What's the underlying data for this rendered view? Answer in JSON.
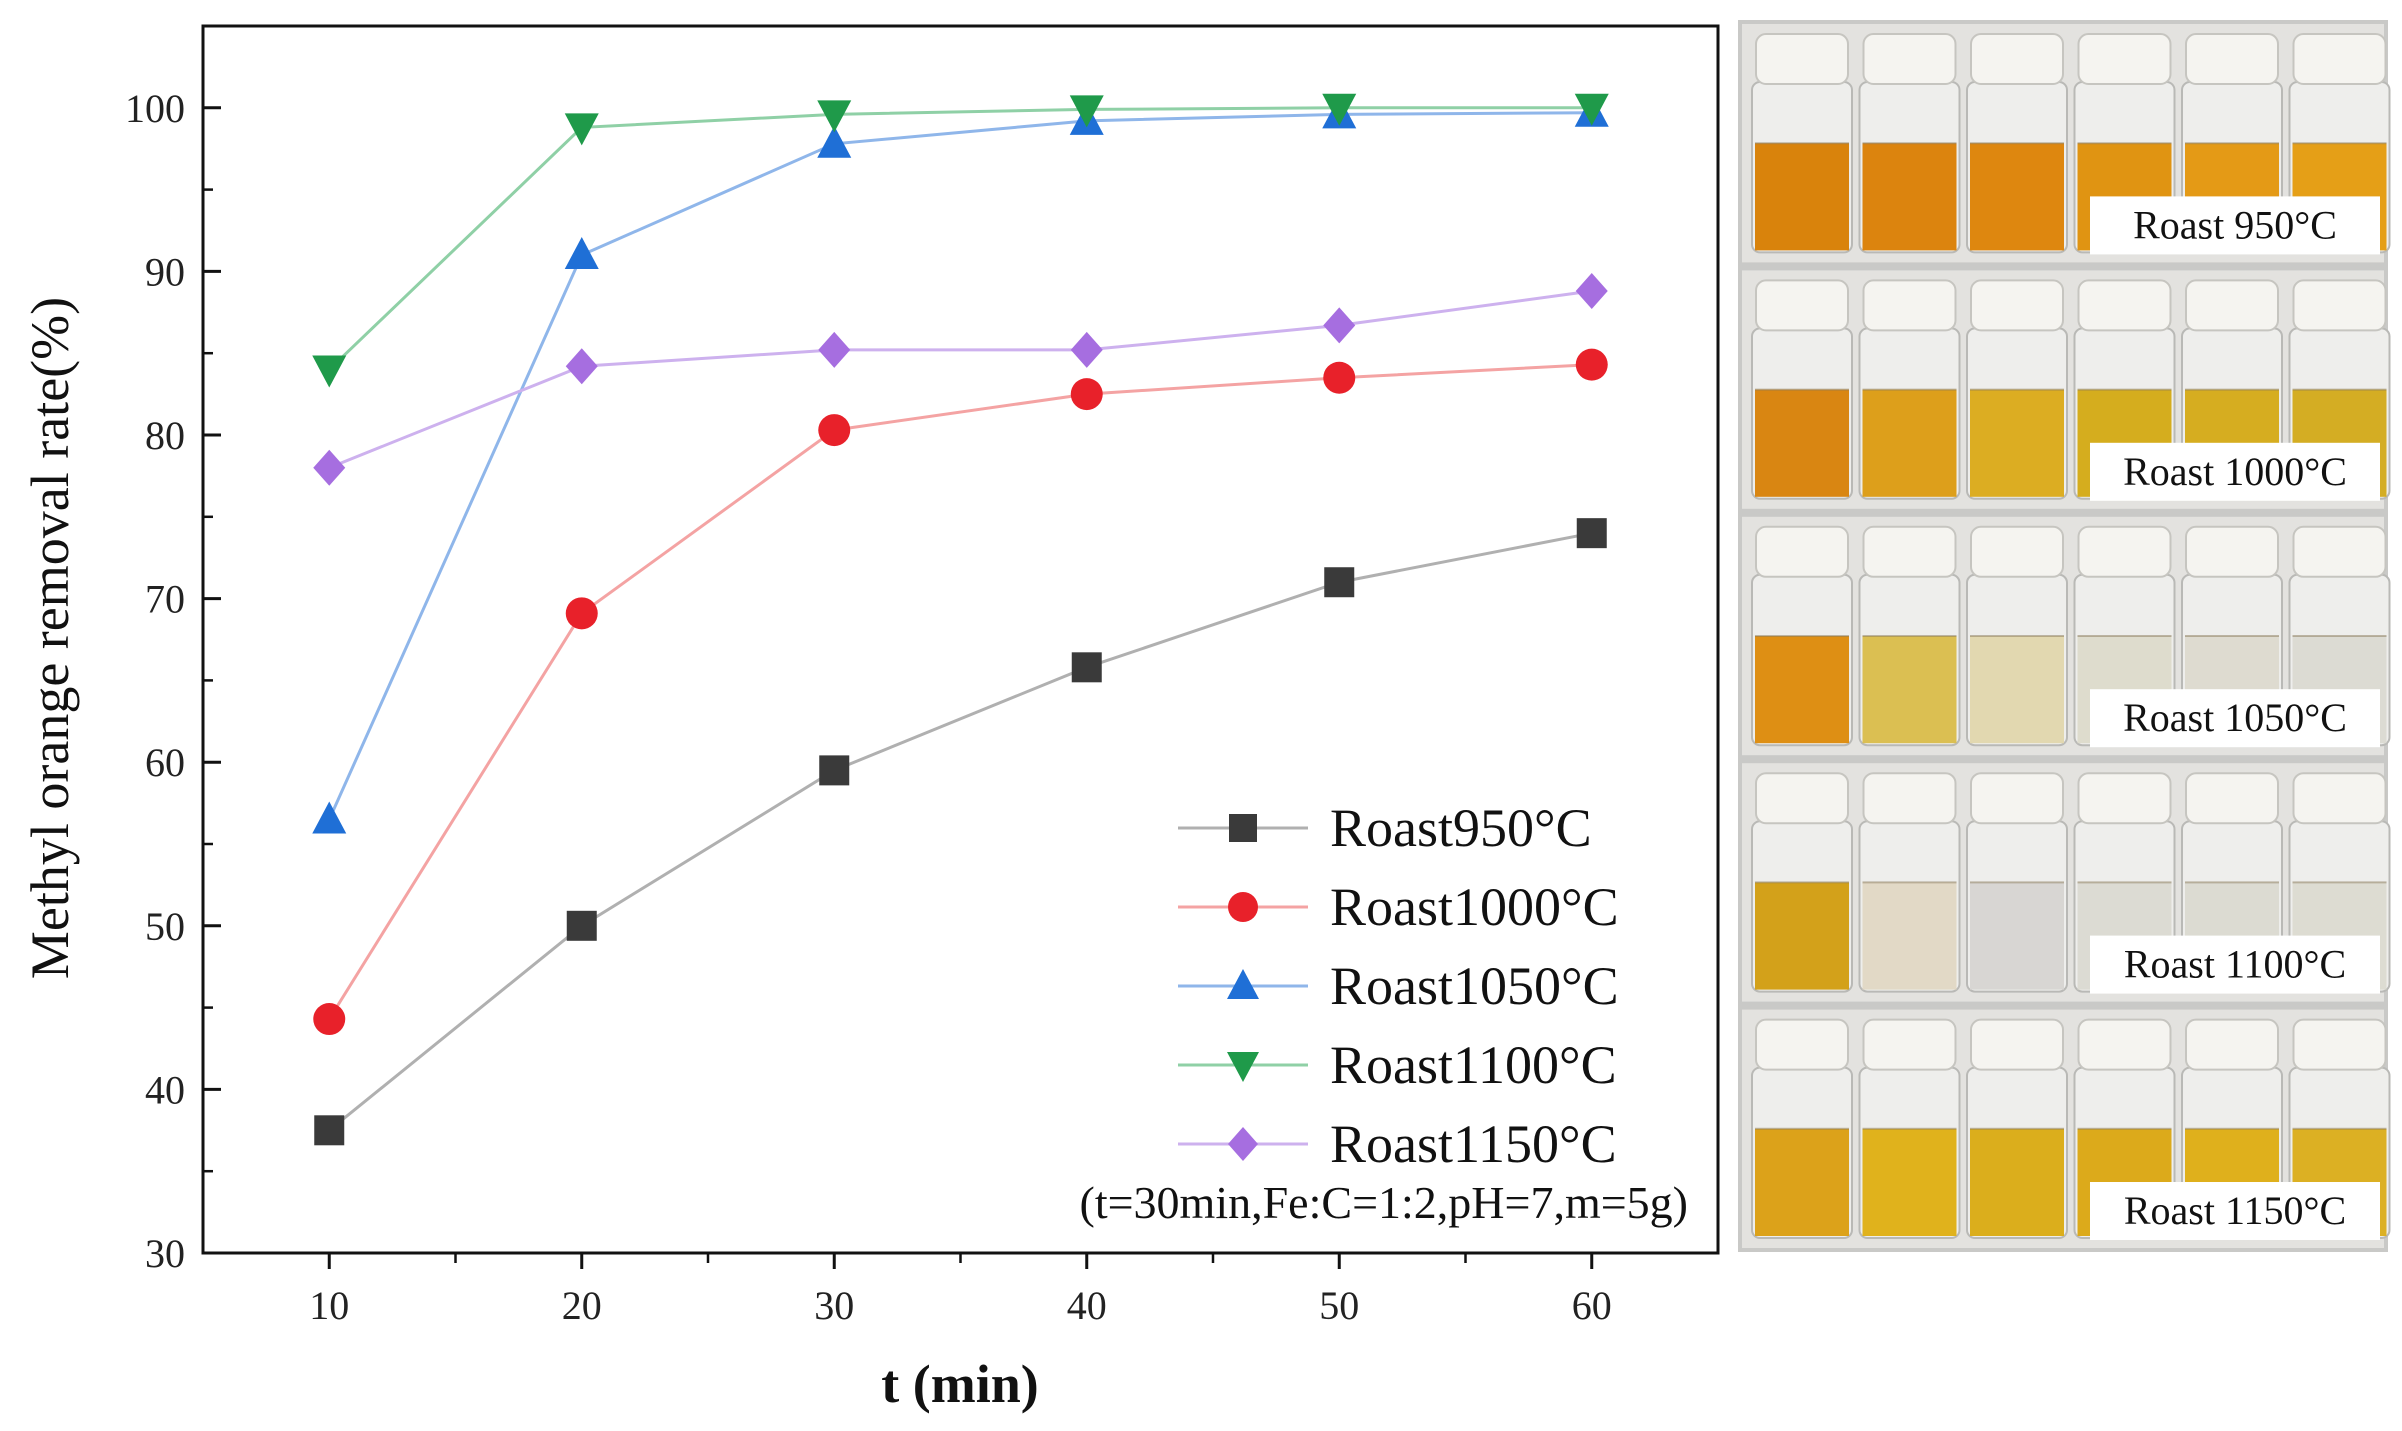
{
  "chart_data": {
    "type": "line",
    "title": "",
    "xlabel": "t (min)",
    "ylabel": "Methyl orange removal rate(%)",
    "x": [
      10,
      20,
      30,
      40,
      50,
      60
    ],
    "xlim": [
      5,
      65
    ],
    "ylim": [
      30,
      105
    ],
    "xticks": [
      10,
      20,
      30,
      40,
      50,
      60
    ],
    "yticks": [
      30,
      40,
      50,
      60,
      70,
      80,
      90,
      100
    ],
    "grid": false,
    "legend_position": "bottom-right",
    "series": [
      {
        "name": "Roast950°C",
        "marker": "square",
        "color": "#3a3a3a",
        "line_color": "#b0b0b0",
        "values": [
          37.5,
          50.0,
          59.5,
          65.8,
          71.0,
          74.0
        ]
      },
      {
        "name": "Roast1000°C",
        "marker": "circle",
        "color": "#e8212a",
        "line_color": "#f4a3a3",
        "values": [
          44.3,
          69.1,
          80.3,
          82.5,
          83.5,
          84.3
        ]
      },
      {
        "name": "Roast1050°C",
        "marker": "triangle-up",
        "color": "#1f6fd6",
        "line_color": "#8fb6ea",
        "values": [
          56.5,
          91.0,
          97.8,
          99.2,
          99.6,
          99.7
        ]
      },
      {
        "name": "Roast1100°C",
        "marker": "triangle-down",
        "color": "#1f9a4a",
        "line_color": "#8fd0a6",
        "values": [
          84.0,
          98.8,
          99.6,
          99.9,
          100.0,
          100.0
        ]
      },
      {
        "name": "Roast1150°C",
        "marker": "diamond",
        "color": "#a66ee0",
        "line_color": "#cdb1ee",
        "values": [
          78.0,
          84.2,
          85.2,
          85.2,
          86.7,
          88.8
        ]
      }
    ],
    "annotation": "(t=30min,Fe:C=1:2,pH=7,m=5g)"
  },
  "photo_panel": {
    "rows": [
      {
        "label": "Roast 950°C",
        "vial_colors": [
          "#d9830c",
          "#dc840e",
          "#de870f",
          "#e09412",
          "#e49a16",
          "#e59f17"
        ]
      },
      {
        "label": "Roast 1000°C",
        "vial_colors": [
          "#d98612",
          "#dd9f1b",
          "#dcad22",
          "#d5ad1e",
          "#d6ad20",
          "#d4ad23"
        ]
      },
      {
        "label": "Roast 1050°C",
        "vial_colors": [
          "#de8f14",
          "#dbbf52",
          "#e2d8b0",
          "#dedccd",
          "#dedbd0",
          "#dcdbd3"
        ]
      },
      {
        "label": "Roast 1100°C",
        "vial_colors": [
          "#d3a11a",
          "#e2d9c6",
          "#d8d6d3",
          "#dcdbd3",
          "#dcdbd2",
          "#dddcd2"
        ]
      },
      {
        "label": "Roast 1150°C",
        "vial_colors": [
          "#dca21a",
          "#e0b21c",
          "#dbae1c",
          "#dcaa1b",
          "#dfb01c",
          "#dcb023"
        ]
      }
    ]
  }
}
